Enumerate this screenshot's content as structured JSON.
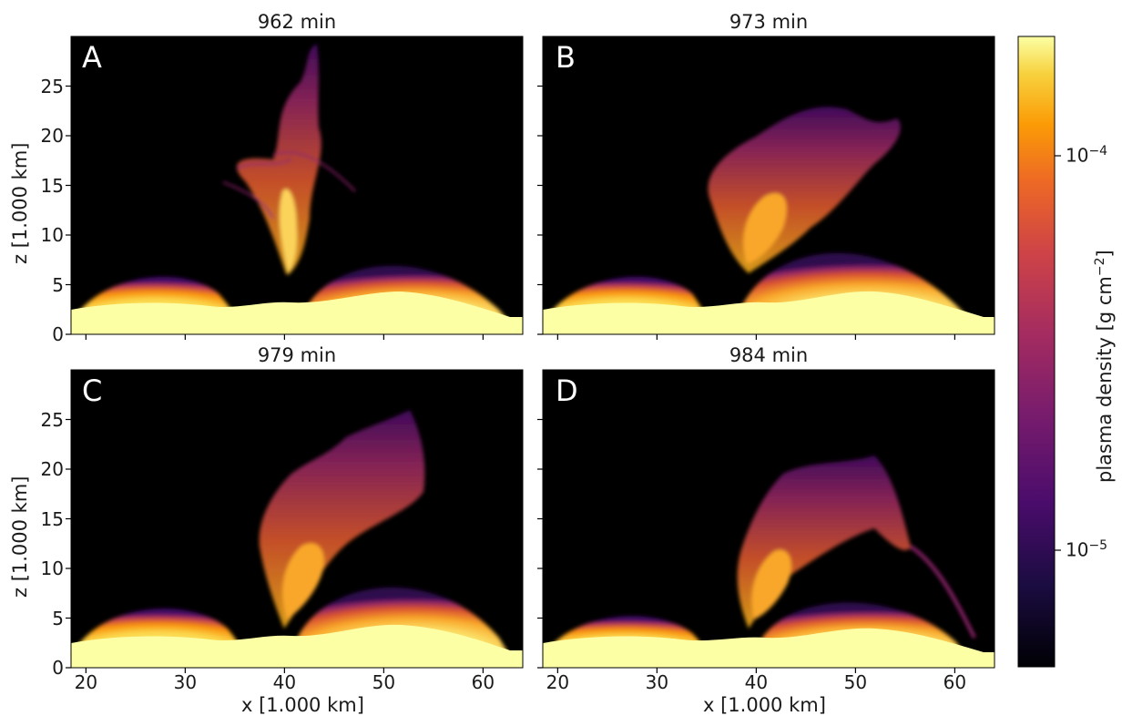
{
  "chart_data": {
    "type": "heatmap",
    "colorbar": {
      "label_main": "plasma density [g cm",
      "label_exp": "−2",
      "label_close": "]",
      "scale": "log",
      "colormap": "inferno",
      "ticks": [
        {
          "base": "10",
          "exp": "−4",
          "value": 0.0001
        },
        {
          "base": "10",
          "exp": "−5",
          "value": 1e-05
        }
      ],
      "range": [
        5e-06,
        0.0003
      ]
    },
    "x_axis": {
      "label": "x [1.000 km]",
      "ticks": [
        "20",
        "30",
        "40",
        "50",
        "60"
      ],
      "range": [
        18.5,
        64
      ]
    },
    "y_axis": {
      "label": "z [1.000 km]",
      "ticks": [
        "0",
        "5",
        "10",
        "15",
        "20",
        "25"
      ],
      "range": [
        0,
        30
      ]
    },
    "panels": [
      {
        "letter": "A",
        "title": "962 min"
      },
      {
        "letter": "B",
        "title": "973 min"
      },
      {
        "letter": "C",
        "title": "979 min"
      },
      {
        "letter": "D",
        "title": "984 min"
      }
    ]
  },
  "colors": {
    "background": "#000000",
    "dense": "#fcffa4",
    "orange": "#f98e09",
    "red": "#bc3754",
    "purple": "#57106e",
    "dark": "#0d0829"
  }
}
